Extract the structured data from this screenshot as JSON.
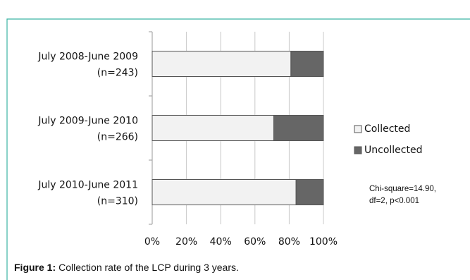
{
  "chart_data": {
    "type": "stacked_barh",
    "categories": [
      "July 2008-June 2009",
      "July 2009-June 2010",
      "July 2010-June 2011"
    ],
    "category_notes": [
      "(n=243)",
      "(n=266)",
      "(n=310)"
    ],
    "series": [
      {
        "name": "Collected",
        "color": "#f2f2f2",
        "values": [
          81,
          71,
          84
        ]
      },
      {
        "name": "Uncollected",
        "color": "#666666",
        "values": [
          19,
          29,
          16
        ]
      }
    ],
    "xlim": [
      0,
      100
    ],
    "xticks": [
      {
        "value": 0,
        "label": "0%"
      },
      {
        "value": 20,
        "label": "20%"
      },
      {
        "value": 40,
        "label": "40%"
      },
      {
        "value": 60,
        "label": "60%"
      },
      {
        "value": 80,
        "label": "80%"
      },
      {
        "value": 100,
        "label": "100%"
      }
    ],
    "grid": true,
    "annotation": [
      "Chi-square=14.90,",
      "df=2, p<0.001"
    ],
    "caption_label": "Figure 1:",
    "caption": "Collection rate of the LCP during 3 years."
  }
}
